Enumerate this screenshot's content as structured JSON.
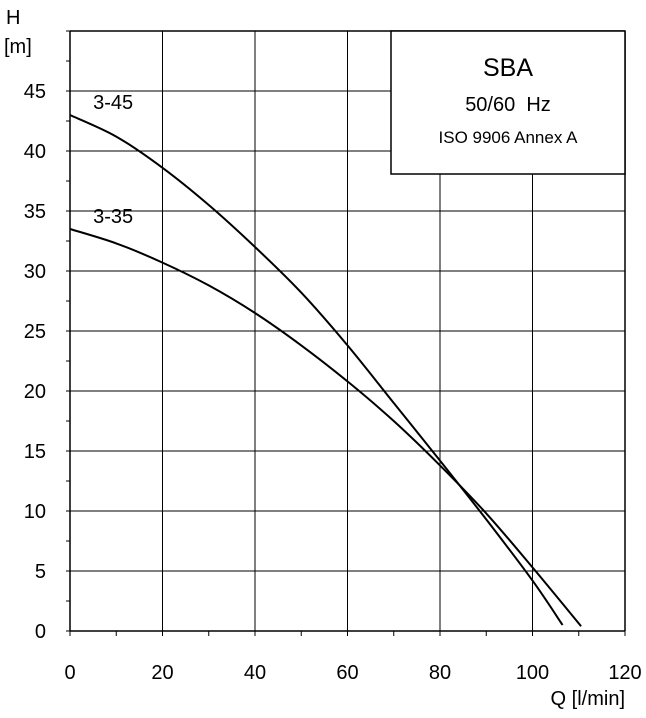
{
  "chart_data": {
    "type": "line",
    "title": "SBA",
    "subtitle": "50/60  Hz",
    "note": "ISO 9906 Annex A",
    "xlabel": "Q [l/min]",
    "ylabel_top": "H",
    "ylabel_unit": "[m]",
    "xlim": [
      0,
      120
    ],
    "ylim": [
      0,
      50
    ],
    "xticks": [
      "0",
      "20",
      "40",
      "60",
      "80",
      "100",
      "120"
    ],
    "yticks": [
      "0",
      "5",
      "10",
      "15",
      "20",
      "25",
      "30",
      "35",
      "40",
      "45"
    ],
    "grid": true,
    "series": [
      {
        "name": "3-45",
        "x": [
          0,
          10,
          20,
          30,
          40,
          50,
          60,
          70,
          80,
          90,
          100,
          106.5
        ],
        "y": [
          43.0,
          41.2,
          38.6,
          35.5,
          32.0,
          28.2,
          23.8,
          19.0,
          14.2,
          9.3,
          4.2,
          0.5
        ]
      },
      {
        "name": "3-35",
        "x": [
          0,
          10,
          20,
          30,
          40,
          50,
          60,
          70,
          80,
          90,
          100,
          110.5
        ],
        "y": [
          33.5,
          32.3,
          30.7,
          28.8,
          26.5,
          23.8,
          20.8,
          17.5,
          13.8,
          9.8,
          5.3,
          0.4
        ]
      }
    ]
  }
}
